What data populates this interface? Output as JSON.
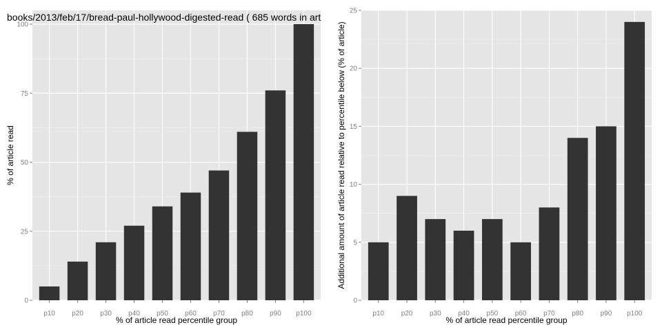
{
  "colors": {
    "panel_background": "#e5e5e5",
    "grid_major": "#ffffff",
    "grid_minor": "#f2f2f2",
    "bar_fill": "#333333",
    "tick_label": "#7f7f7f",
    "tick_mark": "#7f7f7f"
  },
  "chart_data": [
    {
      "type": "bar",
      "title": "books/2013/feb/17/bread-paul-hollywood-digested-read ( 685 words in art",
      "xlabel": "% of article read percentile group",
      "ylabel": "% of article read",
      "categories": [
        "p10",
        "p20",
        "p30",
        "p40",
        "p50",
        "p60",
        "p70",
        "p80",
        "p90",
        "p100"
      ],
      "values": [
        5,
        14,
        21,
        27,
        34,
        39,
        47,
        61,
        76,
        100
      ],
      "ylim": [
        0,
        105
      ],
      "yticks": [
        0,
        25,
        50,
        75,
        100
      ],
      "grid": true,
      "legend": "none"
    },
    {
      "type": "bar",
      "title": "",
      "xlabel": "% of article read percentile group",
      "ylabel": "Additional amount of article read relative to percentile below (% of article)",
      "categories": [
        "p10",
        "p20",
        "p30",
        "p40",
        "p50",
        "p60",
        "p70",
        "p80",
        "p90",
        "p100"
      ],
      "values": [
        5,
        9,
        7,
        6,
        7,
        5,
        8,
        14,
        15,
        24
      ],
      "ylim": [
        0,
        25
      ],
      "yticks": [
        0,
        5,
        10,
        15,
        20,
        25
      ],
      "grid": true,
      "legend": "none"
    }
  ]
}
